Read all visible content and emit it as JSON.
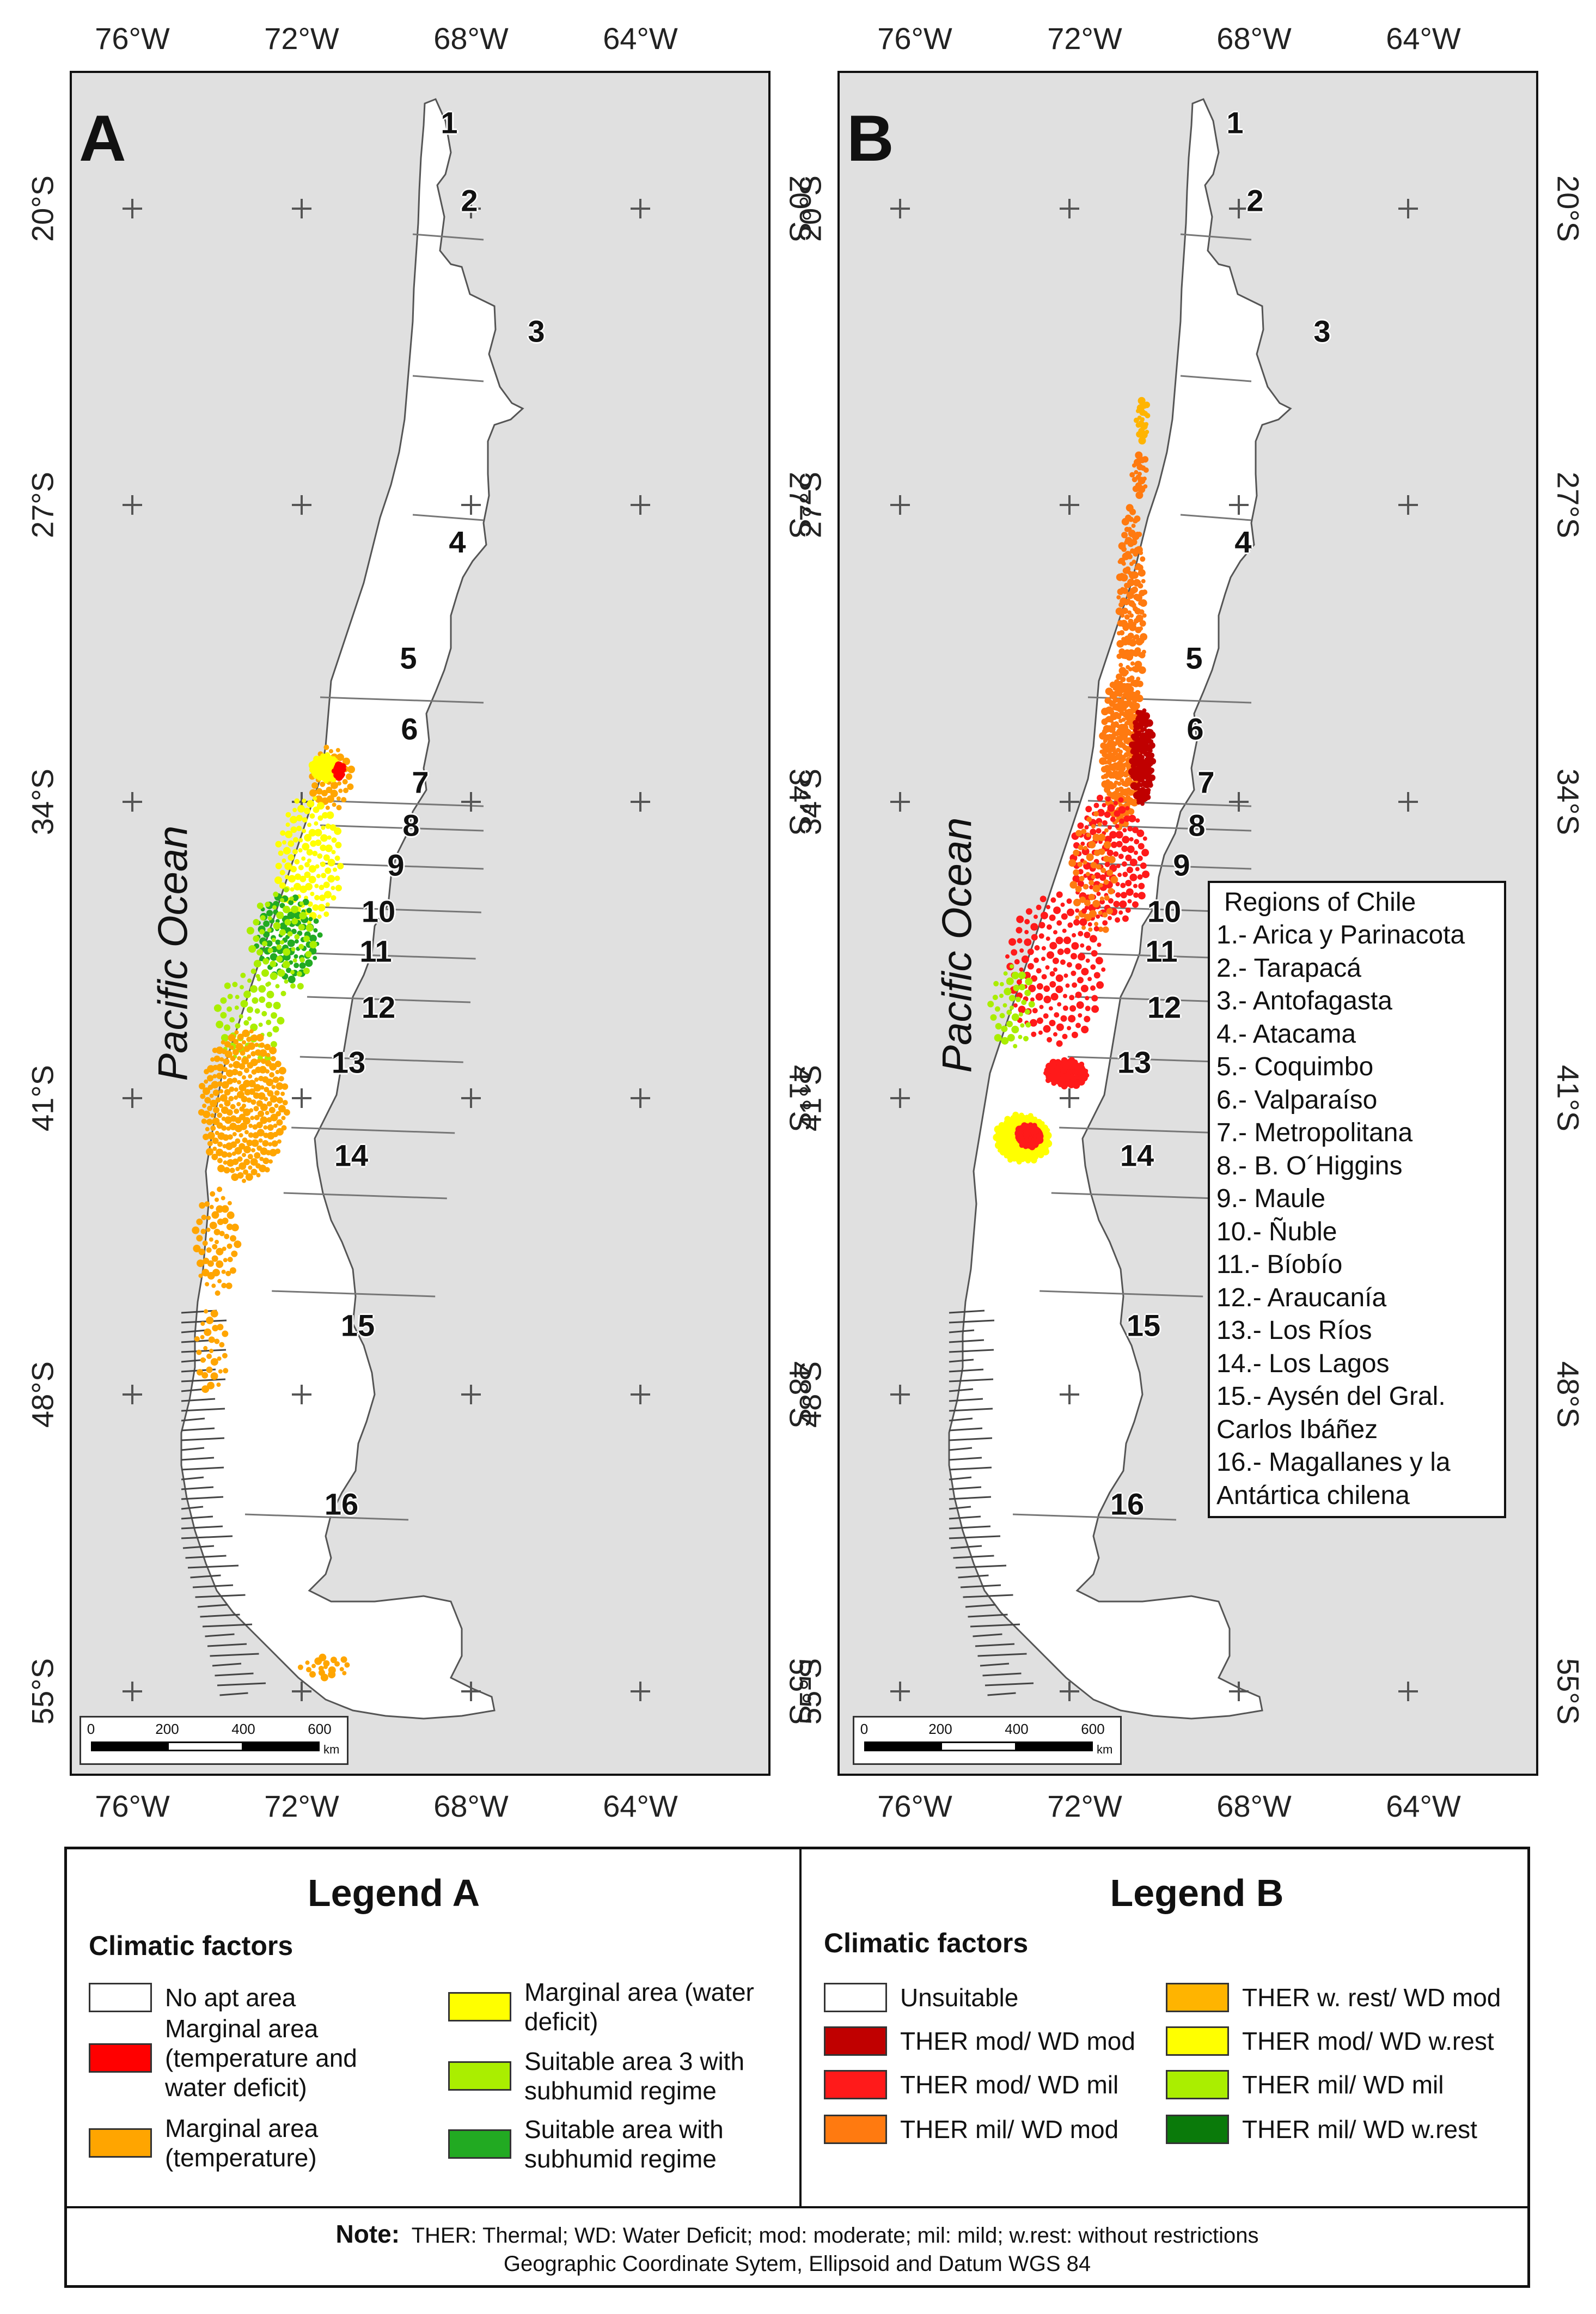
{
  "panels": {
    "a": {
      "letter": "A"
    },
    "b": {
      "letter": "B"
    }
  },
  "coords": {
    "lon": [
      "76°W",
      "72°W",
      "68°W",
      "64°W"
    ],
    "lat": [
      "20°S",
      "27°S",
      "34°S",
      "41°S",
      "48°S",
      "55°S"
    ]
  },
  "region_numbers": [
    "1",
    "2",
    "3",
    "4",
    "5",
    "6",
    "7",
    "8",
    "9",
    "10",
    "11",
    "12",
    "13",
    "14",
    "15",
    "16"
  ],
  "ocean_label": "Pacific Ocean",
  "scalebar": {
    "ticks": [
      "0",
      "200",
      "400",
      "600"
    ],
    "unit": "km"
  },
  "regions_box": {
    "title": "Regions of Chile",
    "lines": [
      "1.-    Arica y Parinacota",
      "2.-    Tarapacá",
      "3.-    Antofagasta",
      "4.-    Atacama",
      "5.-    Coquimbo",
      "6.-    Valparaíso",
      "7.-    Metropolitana",
      "8.-    B. O´Higgins",
      "9.-    Maule",
      "10.- Ñuble",
      "11.- Bíobío",
      "12.- Araucanía",
      "13.- Los Ríos",
      "14.- Los Lagos",
      "15.- Aysén del Gral.",
      "Carlos Ibáñez",
      "16.- Magallanes y la",
      "Antártica chilena"
    ]
  },
  "legend_a": {
    "title": "Legend A",
    "subtitle": "Climatic factors",
    "items": [
      {
        "label": "No apt area",
        "color": "#ffffff"
      },
      {
        "label": "Marginal area\n(temperature and\nwater deficit)",
        "color": "#ff0000"
      },
      {
        "label": "Marginal area\n(temperature)",
        "color": "#ffa500"
      },
      {
        "label": "Marginal area (water\ndeficit)",
        "color": "#ffff00"
      },
      {
        "label": "Suitable area 3 with\nsubhumid regime",
        "color": "#aaee00"
      },
      {
        "label": "Suitable area with\nsubhumid regime",
        "color": "#22aa22"
      }
    ]
  },
  "legend_b": {
    "title": "Legend B",
    "subtitle": "Climatic factors",
    "items": [
      {
        "label": "Unsuitable",
        "color": "#ffffff"
      },
      {
        "label": "THER mod/ WD mod",
        "color": "#c00000"
      },
      {
        "label": "THER mod/ WD mil",
        "color": "#ff1a1a"
      },
      {
        "label": "THER mil/ WD mod",
        "color": "#ff7a10"
      },
      {
        "label": "THER w. rest/ WD mod",
        "color": "#ffb400"
      },
      {
        "label": "THER mod/ WD w.rest",
        "color": "#ffff00"
      },
      {
        "label": "THER mil/ WD mil",
        "color": "#aaee00"
      },
      {
        "label": "THER mil/ WD w.rest",
        "color": "#0a7a0a"
      }
    ]
  },
  "note": {
    "label": "Note:",
    "text": "THER: Thermal; WD: Water Deficit; mod: moderate; mil: mild; w.rest: without restrictions",
    "text2": "Geographic Coordinate Sytem, Ellipsoid and Datum WGS 84"
  }
}
